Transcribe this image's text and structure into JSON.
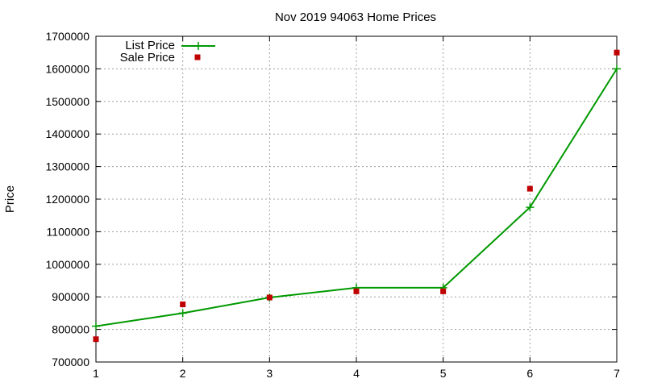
{
  "chart_data": {
    "type": "line",
    "title": "Nov 2019 94063 Home Prices",
    "xlabel": "",
    "ylabel": "Price",
    "x": [
      1,
      2,
      3,
      4,
      5,
      6,
      7
    ],
    "xlim": [
      1,
      7
    ],
    "ylim": [
      700000,
      1700000
    ],
    "xticks": [
      "1",
      "2",
      "3",
      "4",
      "5",
      "6",
      "7"
    ],
    "yticks": [
      "700000",
      "800000",
      "900000",
      "1000000",
      "1100000",
      "1200000",
      "1300000",
      "1400000",
      "1500000",
      "1600000",
      "1700000"
    ],
    "grid": true,
    "legend_position": "top-left",
    "series": [
      {
        "name": "List Price",
        "style": "line-with-plus-markers",
        "color": "#009900",
        "values": [
          810000,
          850000,
          898000,
          928000,
          928000,
          1175000,
          1600000
        ]
      },
      {
        "name": "Sale Price",
        "style": "square-markers",
        "color": "#c00000",
        "values": [
          770000,
          877000,
          898000,
          917000,
          917000,
          1232000,
          1650000
        ]
      }
    ]
  }
}
